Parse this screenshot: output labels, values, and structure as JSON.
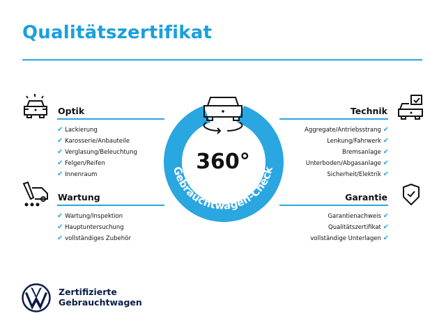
{
  "title": "Qualitätszertifikat",
  "colors": {
    "accent": "#2aa6e0",
    "brand_navy": "#0b1c47"
  },
  "badge": {
    "value": "360°",
    "arc_text": "Gebrauchtwagen-Check",
    "icon": "car-rotate-icon"
  },
  "sections": {
    "optik": {
      "title": "Optik",
      "icon": "car-lights-icon",
      "items": [
        "Lackierung",
        "Karosserie/Anbauteile",
        "Verglasung/Beleuchtung",
        "Felgen/Reifen",
        "Innenraum"
      ]
    },
    "wartung": {
      "title": "Wartung",
      "icon": "maintenance-van-icon",
      "items": [
        "Wartung/Inspektion",
        "Hauptuntersuchung",
        "vollständiges Zubehör"
      ]
    },
    "technik": {
      "title": "Technik",
      "icon": "car-checkbox-icon",
      "items": [
        "Aggregate/Antriebsstrang",
        "Lenkung/Fahrwerk",
        "Bremsanlage",
        "Unterboden/Abgasanlage",
        "Sicherheit/Elektrik"
      ]
    },
    "garantie": {
      "title": "Garantie",
      "icon": "shield-check-icon",
      "items": [
        "Garantienachweis",
        "Qualitätszertifikat",
        "vollständige Unterlagen"
      ]
    }
  },
  "check_mark": "✔",
  "brand": {
    "line1": "Zertifizierte",
    "line2": "Gebrauchtwagen"
  }
}
